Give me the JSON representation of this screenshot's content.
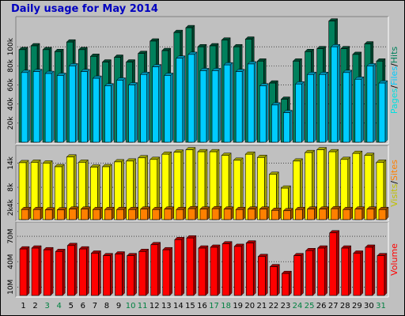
{
  "title": "Daily usage for May 2014",
  "colors": {
    "background": "#c0c0c0",
    "plot_bg": "#c0c0c0",
    "hits": "#00805c",
    "files": "#00ccff",
    "pages": "#00e0e0",
    "visits": "#ffff00",
    "sites": "#ff8000",
    "volume": "#ff0000",
    "weekend": "#008040",
    "weekday": "#000000",
    "title": "#0000c0"
  },
  "chart_data": [
    {
      "type": "bar",
      "panel": "hits-files-pages",
      "title": "Daily usage for May 2014",
      "ylabel_parts": [
        "Pages",
        "/",
        "Files",
        "/",
        "Hits"
      ],
      "y_ticks": [
        "20k",
        "40k",
        "60k",
        "80k",
        "100k"
      ],
      "y_tick_values": [
        20000,
        40000,
        60000,
        80000,
        100000
      ],
      "ylim": [
        0,
        130000
      ],
      "categories": [
        "1",
        "2",
        "3",
        "4",
        "5",
        "6",
        "7",
        "8",
        "9",
        "10",
        "11",
        "12",
        "13",
        "14",
        "15",
        "16",
        "17",
        "18",
        "19",
        "20",
        "21",
        "22",
        "23",
        "24",
        "25",
        "26",
        "27",
        "28",
        "29",
        "30",
        "31"
      ],
      "series": [
        {
          "name": "Hits",
          "values": [
            97000,
            101000,
            97000,
            95000,
            105000,
            97000,
            90000,
            84000,
            89000,
            84000,
            93000,
            106000,
            96000,
            115000,
            120000,
            100000,
            101000,
            107000,
            100000,
            108000,
            85000,
            62000,
            45000,
            85000,
            95000,
            98000,
            127000,
            98000,
            92000,
            103000,
            85000
          ]
        },
        {
          "name": "Files",
          "values": [
            73000,
            74000,
            72000,
            70000,
            80000,
            74000,
            67000,
            59000,
            65000,
            60000,
            71000,
            79000,
            70000,
            88000,
            92000,
            75000,
            75000,
            81000,
            74000,
            82000,
            59000,
            39000,
            31000,
            61000,
            71000,
            71000,
            100000,
            73000,
            66000,
            80000,
            62000
          ]
        },
        {
          "name": "Pages",
          "values": [
            0,
            0,
            0,
            0,
            0,
            0,
            0,
            0,
            0,
            0,
            0,
            0,
            0,
            0,
            0,
            0,
            0,
            0,
            0,
            0,
            0,
            0,
            0,
            0,
            0,
            0,
            0,
            0,
            0,
            0,
            0
          ]
        }
      ]
    },
    {
      "type": "bar",
      "panel": "visits-sites",
      "ylabel_parts": [
        "Visits",
        "/",
        "Sites"
      ],
      "y_ticks": [
        "2k",
        "4k",
        "8k",
        "14k"
      ],
      "y_tick_values": [
        2000,
        4000,
        8000,
        14000
      ],
      "ylim": [
        0,
        18000
      ],
      "categories": [
        "1",
        "2",
        "3",
        "4",
        "5",
        "6",
        "7",
        "8",
        "9",
        "10",
        "11",
        "12",
        "13",
        "14",
        "15",
        "16",
        "17",
        "18",
        "19",
        "20",
        "21",
        "22",
        "23",
        "24",
        "25",
        "26",
        "27",
        "28",
        "29",
        "30",
        "31"
      ],
      "series": [
        {
          "name": "Visits",
          "values": [
            14100,
            14200,
            14000,
            13100,
            15500,
            14200,
            13000,
            13100,
            14300,
            14500,
            15300,
            14900,
            16200,
            16700,
            17300,
            16800,
            16800,
            15900,
            14700,
            16200,
            15400,
            11200,
            7800,
            14500,
            16600,
            17300,
            16800,
            14900,
            16400,
            15900,
            14200
          ]
        },
        {
          "name": "Sites",
          "values": [
            2500,
            2500,
            2400,
            2400,
            2600,
            2600,
            2500,
            2500,
            2500,
            2500,
            2600,
            2500,
            2600,
            2500,
            2700,
            2600,
            2700,
            2600,
            2500,
            2600,
            2600,
            2300,
            2200,
            2500,
            2600,
            2600,
            2700,
            2500,
            2600,
            2600,
            2500
          ]
        }
      ]
    },
    {
      "type": "bar",
      "panel": "volume",
      "ylabel": "Volume",
      "y_ticks": [
        "10M",
        "40M",
        "70M"
      ],
      "y_tick_values": [
        10000000,
        40000000,
        70000000
      ],
      "ylim": [
        0,
        85000000
      ],
      "categories": [
        "1",
        "2",
        "3",
        "4",
        "5",
        "6",
        "7",
        "8",
        "9",
        "10",
        "11",
        "12",
        "13",
        "14",
        "15",
        "16",
        "17",
        "18",
        "19",
        "20",
        "21",
        "22",
        "23",
        "24",
        "25",
        "26",
        "27",
        "28",
        "29",
        "30",
        "31"
      ],
      "series": [
        {
          "name": "Volume",
          "values": [
            55000000,
            56000000,
            54000000,
            52000000,
            59000000,
            55000000,
            50000000,
            47000000,
            49000000,
            47000000,
            52000000,
            60000000,
            54000000,
            66000000,
            68000000,
            56000000,
            57000000,
            61000000,
            58000000,
            62000000,
            46000000,
            34000000,
            26000000,
            47000000,
            53000000,
            56000000,
            74000000,
            56000000,
            50000000,
            57000000,
            47000000
          ]
        }
      ]
    }
  ],
  "x_labels": [
    "1",
    "2",
    "3",
    "4",
    "5",
    "6",
    "7",
    "8",
    "9",
    "10",
    "11",
    "12",
    "13",
    "14",
    "15",
    "16",
    "17",
    "18",
    "19",
    "20",
    "21",
    "22",
    "23",
    "24",
    "25",
    "26",
    "27",
    "28",
    "29",
    "30",
    "31"
  ],
  "weekend_days": [
    3,
    4,
    10,
    11,
    17,
    18,
    24,
    25,
    31
  ]
}
